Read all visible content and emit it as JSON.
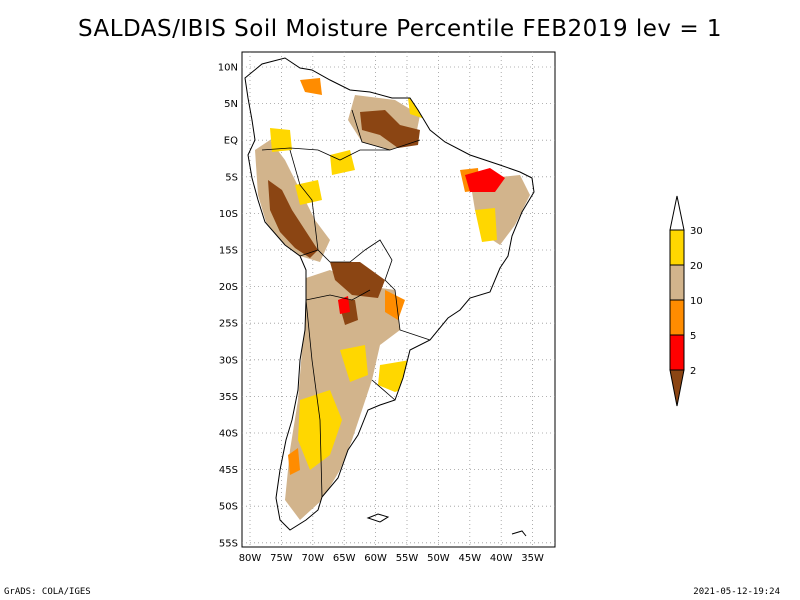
{
  "title": "SALDAS/IBIS Soil Moisture Percentile FEB2019 lev = 1",
  "lat_labels": [
    "10N",
    "5N",
    "EQ",
    "5S",
    "10S",
    "15S",
    "20S",
    "25S",
    "30S",
    "35S",
    "40S",
    "45S",
    "50S",
    "55S"
  ],
  "lon_labels": [
    "80W",
    "75W",
    "70W",
    "65W",
    "60W",
    "55W",
    "50W",
    "45W",
    "40W",
    "35W"
  ],
  "legend": {
    "labels": [
      "30",
      "20",
      "10",
      "5",
      "2"
    ],
    "colors": {
      "above_30": "#ffffff",
      "20_30": "#ffd700",
      "10_20": "#d2b48c",
      "5_10": "#ff8c00",
      "2_5": "#ff0000",
      "below_2": "#8b4513"
    }
  },
  "footer_left": "GrADS: COLA/IGES",
  "footer_right": "2021-05-12-19:24"
}
